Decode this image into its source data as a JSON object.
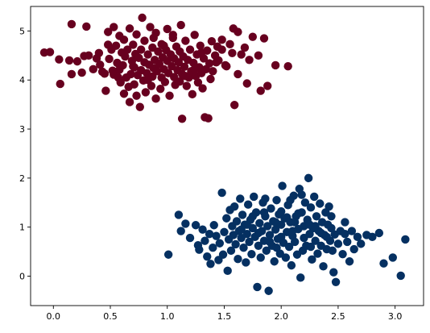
{
  "chart_data": {
    "type": "scatter",
    "title": "",
    "xlabel": "",
    "ylabel": "",
    "xlim": [
      -0.2,
      3.25
    ],
    "ylim": [
      -0.6,
      5.5
    ],
    "xticks": [
      0.0,
      0.5,
      1.0,
      1.5,
      2.0,
      2.5,
      3.0
    ],
    "xtick_labels": [
      "0.0",
      "0.5",
      "1.0",
      "1.5",
      "2.0",
      "2.5",
      "3.0"
    ],
    "yticks": [
      0,
      1,
      2,
      3,
      4,
      5
    ],
    "ytick_labels": [
      "0",
      "1",
      "2",
      "3",
      "4",
      "5"
    ],
    "grid": false,
    "legend": "none",
    "series": [
      {
        "color": "#67001f",
        "points": [
          [
            -0.08,
            4.56
          ],
          [
            -0.03,
            4.57
          ],
          [
            0.05,
            4.42
          ],
          [
            0.06,
            3.92
          ],
          [
            0.14,
            4.4
          ],
          [
            0.16,
            4.12
          ],
          [
            0.16,
            5.14
          ],
          [
            0.21,
            4.38
          ],
          [
            0.25,
            4.15
          ],
          [
            0.27,
            4.49
          ],
          [
            0.29,
            5.09
          ],
          [
            0.31,
            4.5
          ],
          [
            0.35,
            4.22
          ],
          [
            0.38,
            4.44
          ],
          [
            0.4,
            4.55
          ],
          [
            0.41,
            4.31
          ],
          [
            0.43,
            4.17
          ],
          [
            0.45,
            4.13
          ],
          [
            0.46,
            3.78
          ],
          [
            0.48,
            4.72
          ],
          [
            0.48,
            4.98
          ],
          [
            0.49,
            4.43
          ],
          [
            0.51,
            4.62
          ],
          [
            0.52,
            4.19
          ],
          [
            0.53,
            4.11
          ],
          [
            0.53,
            5.08
          ],
          [
            0.55,
            4.7
          ],
          [
            0.56,
            4.35
          ],
          [
            0.58,
            4.21
          ],
          [
            0.59,
            3.95
          ],
          [
            0.6,
            4.56
          ],
          [
            0.61,
            4.3
          ],
          [
            0.62,
            4.82
          ],
          [
            0.62,
            3.72
          ],
          [
            0.63,
            4.48
          ],
          [
            0.64,
            4.05
          ],
          [
            0.65,
            4.62
          ],
          [
            0.66,
            3.86
          ],
          [
            0.67,
            3.55
          ],
          [
            0.67,
            5.05
          ],
          [
            0.68,
            4.12
          ],
          [
            0.69,
            4.39
          ],
          [
            0.7,
            4.72
          ],
          [
            0.71,
            3.91
          ],
          [
            0.71,
            4.26
          ],
          [
            0.72,
            4.53
          ],
          [
            0.73,
            4.93
          ],
          [
            0.73,
            3.68
          ],
          [
            0.74,
            4.1
          ],
          [
            0.75,
            4.45
          ],
          [
            0.76,
            3.45
          ],
          [
            0.77,
            4.62
          ],
          [
            0.77,
            4.2
          ],
          [
            0.78,
            5.27
          ],
          [
            0.79,
            3.99
          ],
          [
            0.8,
            4.36
          ],
          [
            0.8,
            4.8
          ],
          [
            0.81,
            3.75
          ],
          [
            0.82,
            4.14
          ],
          [
            0.83,
            4.52
          ],
          [
            0.84,
            4.31
          ],
          [
            0.85,
            5.08
          ],
          [
            0.86,
            3.88
          ],
          [
            0.87,
            4.07
          ],
          [
            0.87,
            4.66
          ],
          [
            0.88,
            4.24
          ],
          [
            0.89,
            4.41
          ],
          [
            0.9,
            3.62
          ],
          [
            0.9,
            4.96
          ],
          [
            0.91,
            4.18
          ],
          [
            0.92,
            4.58
          ],
          [
            0.93,
            4.33
          ],
          [
            0.94,
            3.82
          ],
          [
            0.95,
            4.73
          ],
          [
            0.95,
            4.05
          ],
          [
            0.96,
            4.46
          ],
          [
            0.97,
            4.22
          ],
          [
            0.98,
            3.96
          ],
          [
            0.99,
            4.61
          ],
          [
            1.0,
            4.39
          ],
          [
            1.0,
            5.04
          ],
          [
            1.01,
            4.14
          ],
          [
            1.02,
            3.68
          ],
          [
            1.03,
            4.52
          ],
          [
            1.04,
            4.28
          ],
          [
            1.05,
            4.86
          ],
          [
            1.06,
            4.06
          ],
          [
            1.06,
            4.44
          ],
          [
            1.07,
            3.9
          ],
          [
            1.08,
            4.68
          ],
          [
            1.09,
            4.2
          ],
          [
            1.1,
            4.36
          ],
          [
            1.11,
            3.97
          ],
          [
            1.11,
            4.58
          ],
          [
            1.12,
            5.12
          ],
          [
            1.13,
            4.12
          ],
          [
            1.13,
            3.21
          ],
          [
            1.14,
            4.48
          ],
          [
            1.15,
            4.27
          ],
          [
            1.16,
            4.8
          ],
          [
            1.17,
            3.88
          ],
          [
            1.18,
            4.41
          ],
          [
            1.19,
            4.05
          ],
          [
            1.2,
            4.62
          ],
          [
            1.21,
            4.18
          ],
          [
            1.22,
            3.71
          ],
          [
            1.23,
            4.35
          ],
          [
            1.24,
            4.92
          ],
          [
            1.25,
            4.08
          ],
          [
            1.26,
            4.52
          ],
          [
            1.27,
            3.95
          ],
          [
            1.28,
            4.26
          ],
          [
            1.29,
            4.7
          ],
          [
            1.3,
            4.14
          ],
          [
            1.31,
            3.83
          ],
          [
            1.32,
            4.44
          ],
          [
            1.33,
            3.24
          ],
          [
            1.34,
            4.22
          ],
          [
            1.35,
            4.6
          ],
          [
            1.36,
            3.22
          ],
          [
            1.37,
            4.34
          ],
          [
            1.38,
            4.02
          ],
          [
            1.39,
            4.79
          ],
          [
            1.4,
            4.18
          ],
          [
            1.42,
            4.5
          ],
          [
            1.44,
            4.68
          ],
          [
            1.45,
            4.4
          ],
          [
            1.48,
            4.82
          ],
          [
            1.51,
            4.3
          ],
          [
            1.55,
            4.73
          ],
          [
            1.57,
            4.55
          ],
          [
            1.59,
            3.49
          ],
          [
            1.62,
            4.98
          ],
          [
            1.65,
            4.52
          ],
          [
            1.7,
            3.93
          ],
          [
            1.72,
            4.41
          ],
          [
            1.75,
            4.88
          ],
          [
            1.8,
            4.5
          ],
          [
            1.82,
            3.78
          ],
          [
            1.85,
            4.85
          ],
          [
            1.88,
            3.88
          ],
          [
            1.95,
            4.3
          ],
          [
            2.06,
            4.28
          ],
          [
            1.48,
            4.62
          ],
          [
            1.58,
            5.05
          ],
          [
            1.62,
            4.12
          ],
          [
            1.68,
            4.66
          ],
          [
            1.52,
            4.28
          ],
          [
            0.58,
            4.9
          ],
          [
            0.88,
            4.86
          ],
          [
            1.05,
            4.92
          ],
          [
            0.7,
            4.28
          ],
          [
            0.83,
            4.0
          ],
          [
            1.16,
            4.08
          ],
          [
            1.3,
            4.56
          ],
          [
            1.43,
            4.36
          ],
          [
            0.57,
            4.05
          ],
          [
            0.97,
            4.7
          ],
          [
            1.24,
            4.22
          ]
        ]
      },
      {
        "color": "#053061",
        "points": [
          [
            1.01,
            0.44
          ],
          [
            1.1,
            1.25
          ],
          [
            1.12,
            0.92
          ],
          [
            1.16,
            1.07
          ],
          [
            1.2,
            0.78
          ],
          [
            1.25,
            1.04
          ],
          [
            1.27,
            0.63
          ],
          [
            1.28,
            0.54
          ],
          [
            1.31,
            0.95
          ],
          [
            1.33,
            0.72
          ],
          [
            1.35,
            0.4
          ],
          [
            1.37,
            0.86
          ],
          [
            1.38,
            0.25
          ],
          [
            1.4,
            0.58
          ],
          [
            1.41,
            1.04
          ],
          [
            1.43,
            0.82
          ],
          [
            1.45,
            0.33
          ],
          [
            1.46,
            0.67
          ],
          [
            1.48,
            1.7
          ],
          [
            1.49,
            0.44
          ],
          [
            1.5,
            0.9
          ],
          [
            1.52,
            1.18
          ],
          [
            1.53,
            0.11
          ],
          [
            1.54,
            0.75
          ],
          [
            1.55,
            1.35
          ],
          [
            1.56,
            0.52
          ],
          [
            1.57,
            1.02
          ],
          [
            1.58,
            0.84
          ],
          [
            1.59,
            1.42
          ],
          [
            1.6,
            0.65
          ],
          [
            1.61,
            1.12
          ],
          [
            1.62,
            0.35
          ],
          [
            1.63,
            0.92
          ],
          [
            1.64,
            1.58
          ],
          [
            1.65,
            0.78
          ],
          [
            1.66,
            1.25
          ],
          [
            1.67,
            0.58
          ],
          [
            1.68,
            1.05
          ],
          [
            1.69,
            0.28
          ],
          [
            1.7,
            0.86
          ],
          [
            1.71,
            1.46
          ],
          [
            1.72,
            0.7
          ],
          [
            1.73,
            1.15
          ],
          [
            1.74,
            0.45
          ],
          [
            1.75,
            0.98
          ],
          [
            1.76,
            1.62
          ],
          [
            1.77,
            0.8
          ],
          [
            1.78,
            1.3
          ],
          [
            1.79,
            -0.22
          ],
          [
            1.8,
            0.62
          ],
          [
            1.81,
            1.08
          ],
          [
            1.82,
            0.38
          ],
          [
            1.83,
            0.92
          ],
          [
            1.84,
            1.5
          ],
          [
            1.85,
            0.72
          ],
          [
            1.86,
            1.22
          ],
          [
            1.87,
            0.52
          ],
          [
            1.88,
            1.02
          ],
          [
            1.89,
            -0.3
          ],
          [
            1.9,
            0.84
          ],
          [
            1.91,
            1.38
          ],
          [
            1.92,
            0.62
          ],
          [
            1.93,
            1.12
          ],
          [
            1.94,
            0.3
          ],
          [
            1.95,
            0.95
          ],
          [
            1.96,
            1.55
          ],
          [
            1.97,
            0.76
          ],
          [
            1.98,
            1.26
          ],
          [
            1.99,
            0.46
          ],
          [
            2.0,
            1.05
          ],
          [
            2.01,
            1.84
          ],
          [
            2.02,
            0.68
          ],
          [
            2.03,
            1.18
          ],
          [
            2.04,
            0.38
          ],
          [
            2.05,
            0.9
          ],
          [
            2.06,
            1.45
          ],
          [
            2.07,
            0.6
          ],
          [
            2.08,
            1.1
          ],
          [
            2.09,
            0.22
          ],
          [
            2.1,
            0.82
          ],
          [
            2.11,
            1.64
          ],
          [
            2.12,
            0.7
          ],
          [
            2.13,
            1.22
          ],
          [
            2.14,
            0.44
          ],
          [
            2.15,
            0.96
          ],
          [
            2.16,
            1.78
          ],
          [
            2.17,
            -0.03
          ],
          [
            2.18,
            1.3
          ],
          [
            2.19,
            0.52
          ],
          [
            2.2,
            1.02
          ],
          [
            2.21,
            1.5
          ],
          [
            2.22,
            0.62
          ],
          [
            2.23,
            1.15
          ],
          [
            2.24,
            2.0
          ],
          [
            2.25,
            0.86
          ],
          [
            2.26,
            1.4
          ],
          [
            2.27,
            0.34
          ],
          [
            2.28,
            0.98
          ],
          [
            2.29,
            1.62
          ],
          [
            2.3,
            0.72
          ],
          [
            2.31,
            1.22
          ],
          [
            2.32,
            0.46
          ],
          [
            2.33,
            0.92
          ],
          [
            2.34,
            1.48
          ],
          [
            2.35,
            0.62
          ],
          [
            2.36,
            1.1
          ],
          [
            2.37,
            0.2
          ],
          [
            2.38,
            0.84
          ],
          [
            2.39,
            1.3
          ],
          [
            2.4,
            0.55
          ],
          [
            2.41,
            1.05
          ],
          [
            2.42,
            1.42
          ],
          [
            2.43,
            0.72
          ],
          [
            2.44,
            0.98
          ],
          [
            2.45,
            0.52
          ],
          [
            2.46,
            0.08
          ],
          [
            2.47,
            0.85
          ],
          [
            2.48,
            -0.12
          ],
          [
            2.5,
            0.66
          ],
          [
            2.52,
            0.92
          ],
          [
            2.54,
            0.45
          ],
          [
            2.56,
            1.1
          ],
          [
            2.58,
            0.7
          ],
          [
            2.6,
            0.3
          ],
          [
            2.62,
            0.92
          ],
          [
            2.64,
            0.55
          ],
          [
            2.67,
            0.8
          ],
          [
            2.7,
            0.66
          ],
          [
            2.75,
            0.84
          ],
          [
            2.8,
            0.8
          ],
          [
            2.86,
            0.88
          ],
          [
            2.9,
            0.26
          ],
          [
            2.98,
            0.38
          ],
          [
            3.05,
            0.01
          ],
          [
            3.09,
            0.75
          ],
          [
            1.75,
            1.22
          ],
          [
            1.85,
            1.3
          ],
          [
            1.95,
            1.1
          ],
          [
            2.05,
            1.2
          ],
          [
            2.15,
            1.28
          ],
          [
            2.25,
            1.05
          ],
          [
            2.35,
            0.88
          ],
          [
            1.65,
            0.95
          ],
          [
            1.8,
            0.88
          ],
          [
            1.9,
            0.7
          ],
          [
            2.0,
            0.8
          ],
          [
            2.1,
            0.92
          ],
          [
            2.2,
            0.78
          ],
          [
            2.3,
            1.02
          ],
          [
            2.4,
            0.8
          ],
          [
            1.7,
            1.05
          ],
          [
            2.0,
            1.32
          ],
          [
            2.12,
            1.1
          ],
          [
            1.96,
            0.58
          ],
          [
            2.26,
            0.6
          ],
          [
            2.08,
            1.55
          ],
          [
            1.86,
            1.58
          ],
          [
            2.18,
            1.66
          ],
          [
            2.44,
            1.22
          ],
          [
            2.56,
            0.86
          ]
        ]
      }
    ]
  }
}
